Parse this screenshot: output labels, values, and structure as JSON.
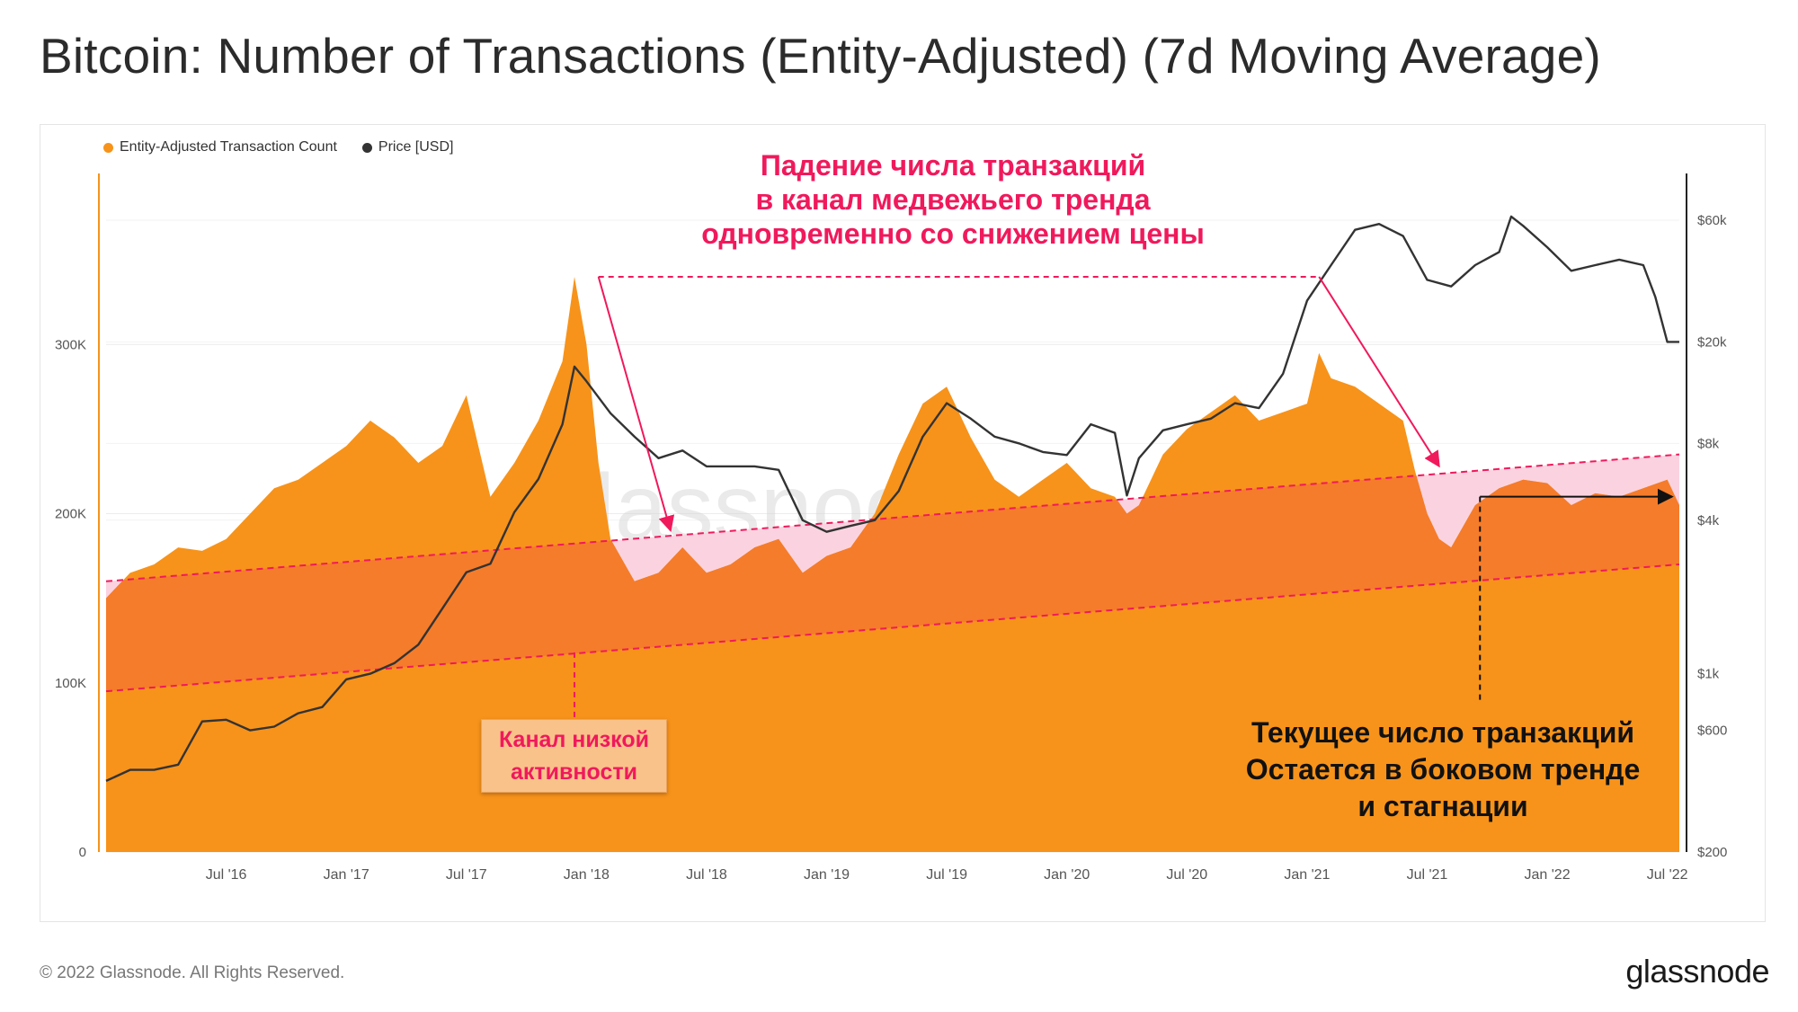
{
  "title": "Bitcoin: Number of Transactions (Entity-Adjusted) (7d Moving Average)",
  "legend": [
    {
      "label": "Entity-Adjusted Transaction Count",
      "color": "#f7931a"
    },
    {
      "label": "Price [USD]",
      "color": "#333333"
    }
  ],
  "annotations": {
    "top": [
      "Падение числа транзакций",
      "в канал медвежьего тренда",
      "одновременно со снижением цены"
    ],
    "channel": [
      "Канал низкой",
      "активности"
    ],
    "current": [
      "Текущее число транзакций",
      "Остается в боковом тренде",
      "и стагнации"
    ]
  },
  "watermark": "glassnode",
  "footer": {
    "copyright": "© 2022 Glassnode. All Rights Reserved.",
    "brand": "glassnode"
  },
  "colors": {
    "area": "#f7931a",
    "channel": "#f57c2a",
    "pink": "#f0195c",
    "pink_fill": "#fbd3e0",
    "price": "#333333"
  },
  "chart_data": {
    "type": "area",
    "title": "Bitcoin: Number of Transactions (Entity-Adjusted) (7d Moving Average)",
    "x_ticks": [
      "Jul '16",
      "Jan '17",
      "Jul '17",
      "Jan '18",
      "Jul '18",
      "Jan '19",
      "Jul '19",
      "Jan '20",
      "Jul '20",
      "Jan '21",
      "Jul '21",
      "Jan '22",
      "Jul '22"
    ],
    "x_range": [
      2016.0,
      2022.55
    ],
    "y_left": {
      "label": "Entity-Adjusted Transaction Count",
      "ticks": [
        0,
        100000,
        200000,
        300000
      ],
      "tick_labels": [
        "0",
        "100K",
        "200K",
        "300K"
      ],
      "range": [
        0,
        400000
      ]
    },
    "y_right": {
      "label": "Price [USD]",
      "scale": "log",
      "ticks": [
        200,
        600,
        1000,
        4000,
        8000,
        20000,
        60000
      ],
      "tick_labels": [
        "$200",
        "$600",
        "$1k",
        "$4k",
        "$8k",
        "$20k",
        "$60k"
      ],
      "range": [
        200,
        90000
      ]
    },
    "series": [
      {
        "name": "Entity-Adjusted Transaction Count",
        "axis": "left",
        "style": "area",
        "x": [
          2016.0,
          2016.1,
          2016.2,
          2016.3,
          2016.4,
          2016.5,
          2016.6,
          2016.7,
          2016.8,
          2016.9,
          2017.0,
          2017.1,
          2017.2,
          2017.3,
          2017.4,
          2017.5,
          2017.55,
          2017.6,
          2017.7,
          2017.8,
          2017.9,
          2017.95,
          2018.0,
          2018.05,
          2018.1,
          2018.2,
          2018.3,
          2018.4,
          2018.5,
          2018.6,
          2018.7,
          2018.8,
          2018.9,
          2019.0,
          2019.1,
          2019.2,
          2019.3,
          2019.4,
          2019.5,
          2019.6,
          2019.7,
          2019.8,
          2019.9,
          2020.0,
          2020.1,
          2020.2,
          2020.25,
          2020.3,
          2020.4,
          2020.5,
          2020.6,
          2020.7,
          2020.8,
          2020.9,
          2021.0,
          2021.05,
          2021.1,
          2021.2,
          2021.3,
          2021.4,
          2021.45,
          2021.5,
          2021.55,
          2021.6,
          2021.7,
          2021.8,
          2021.9,
          2022.0,
          2022.1,
          2022.2,
          2022.3,
          2022.4,
          2022.5,
          2022.55
        ],
        "y": [
          150000,
          165000,
          170000,
          180000,
          178000,
          185000,
          200000,
          215000,
          220000,
          230000,
          240000,
          255000,
          245000,
          230000,
          240000,
          270000,
          240000,
          210000,
          230000,
          255000,
          290000,
          340000,
          300000,
          230000,
          185000,
          160000,
          165000,
          180000,
          165000,
          170000,
          180000,
          185000,
          165000,
          175000,
          180000,
          200000,
          235000,
          265000,
          275000,
          245000,
          220000,
          210000,
          220000,
          230000,
          215000,
          210000,
          200000,
          205000,
          235000,
          250000,
          260000,
          270000,
          255000,
          260000,
          265000,
          295000,
          280000,
          275000,
          265000,
          255000,
          225000,
          200000,
          185000,
          180000,
          205000,
          215000,
          220000,
          218000,
          205000,
          212000,
          210000,
          215000,
          220000,
          205000
        ]
      },
      {
        "name": "Price [USD]",
        "axis": "right",
        "style": "line",
        "x": [
          2016.0,
          2016.1,
          2016.2,
          2016.3,
          2016.4,
          2016.5,
          2016.6,
          2016.7,
          2016.8,
          2016.9,
          2017.0,
          2017.1,
          2017.2,
          2017.3,
          2017.4,
          2017.5,
          2017.6,
          2017.7,
          2017.8,
          2017.9,
          2017.95,
          2018.0,
          2018.1,
          2018.2,
          2018.3,
          2018.4,
          2018.5,
          2018.6,
          2018.7,
          2018.8,
          2018.9,
          2019.0,
          2019.1,
          2019.2,
          2019.3,
          2019.4,
          2019.5,
          2019.6,
          2019.7,
          2019.8,
          2019.9,
          2020.0,
          2020.1,
          2020.2,
          2020.25,
          2020.3,
          2020.4,
          2020.5,
          2020.6,
          2020.7,
          2020.8,
          2020.9,
          2021.0,
          2021.1,
          2021.2,
          2021.3,
          2021.4,
          2021.5,
          2021.6,
          2021.7,
          2021.8,
          2021.85,
          2021.9,
          2022.0,
          2022.1,
          2022.2,
          2022.3,
          2022.4,
          2022.45,
          2022.5,
          2022.55
        ],
        "y": [
          380,
          420,
          420,
          440,
          650,
          660,
          600,
          620,
          700,
          740,
          950,
          1000,
          1100,
          1300,
          1800,
          2500,
          2700,
          4300,
          5800,
          9500,
          16000,
          14000,
          10500,
          8500,
          7000,
          7500,
          6500,
          6500,
          6500,
          6300,
          4000,
          3600,
          3800,
          4000,
          5200,
          8500,
          11500,
          10000,
          8500,
          8000,
          7400,
          7200,
          9500,
          8800,
          5000,
          7000,
          9000,
          9500,
          10000,
          11500,
          11000,
          15000,
          29000,
          40000,
          55000,
          58000,
          52000,
          35000,
          33000,
          40000,
          45000,
          62000,
          57000,
          47000,
          38000,
          40000,
          42000,
          40000,
          30000,
          20000,
          20000
        ]
      }
    ],
    "channel_lines": [
      {
        "name": "Канал низкой активности (upper)",
        "from": [
          2016.0,
          160000
        ],
        "to": [
          2022.55,
          235000
        ]
      },
      {
        "name": "Канал низкой активности (lower)",
        "from": [
          2016.0,
          95000
        ],
        "to": [
          2022.55,
          170000
        ]
      }
    ]
  }
}
